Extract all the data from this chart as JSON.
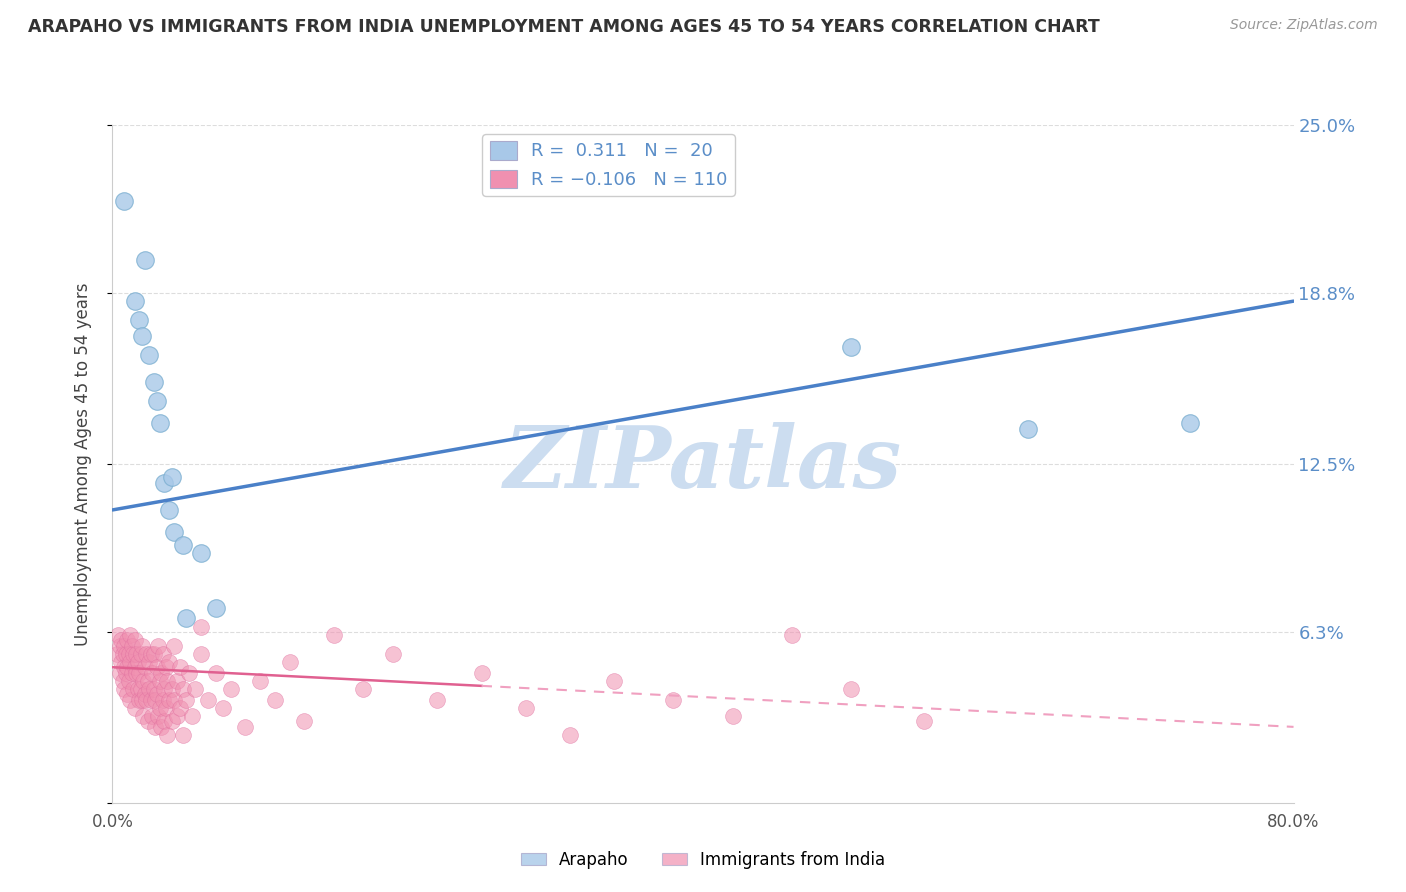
{
  "title": "ARAPAHO VS IMMIGRANTS FROM INDIA UNEMPLOYMENT AMONG AGES 45 TO 54 YEARS CORRELATION CHART",
  "source": "Source: ZipAtlas.com",
  "ylabel": "Unemployment Among Ages 45 to 54 years",
  "xlim": [
    0.0,
    0.8
  ],
  "ylim": [
    0.0,
    0.25
  ],
  "yticks": [
    0.0,
    0.063,
    0.125,
    0.188,
    0.25
  ],
  "ytick_labels": [
    "",
    "6.3%",
    "12.5%",
    "18.8%",
    "25.0%"
  ],
  "arapaho_color": "#a8c8e8",
  "arapaho_edge": "#7aaed0",
  "india_color": "#f090b0",
  "india_edge": "#e070a0",
  "trendline_arapaho_color": "#4a80c8",
  "trendline_india_solid_color": "#e06090",
  "trendline_india_dash_color": "#f0a0c0",
  "watermark_color": "#ccddf0",
  "grid_color": "#dddddd",
  "legend_r_color": "#5080c0",
  "legend_n_color": "#5080c0",
  "arapaho_trendline": [
    0.0,
    0.108,
    0.8,
    0.185
  ],
  "india_trendline_solid_end": 0.25,
  "india_trendline": [
    0.0,
    0.05,
    0.8,
    0.028
  ],
  "arapaho_points": [
    [
      0.008,
      0.222
    ],
    [
      0.015,
      0.185
    ],
    [
      0.018,
      0.178
    ],
    [
      0.02,
      0.172
    ],
    [
      0.022,
      0.2
    ],
    [
      0.025,
      0.165
    ],
    [
      0.028,
      0.155
    ],
    [
      0.03,
      0.148
    ],
    [
      0.032,
      0.14
    ],
    [
      0.035,
      0.118
    ],
    [
      0.038,
      0.108
    ],
    [
      0.04,
      0.12
    ],
    [
      0.042,
      0.1
    ],
    [
      0.048,
      0.095
    ],
    [
      0.05,
      0.068
    ],
    [
      0.06,
      0.092
    ],
    [
      0.07,
      0.072
    ],
    [
      0.5,
      0.168
    ],
    [
      0.62,
      0.138
    ],
    [
      0.73,
      0.14
    ]
  ],
  "india_points": [
    [
      0.003,
      0.055
    ],
    [
      0.004,
      0.062
    ],
    [
      0.005,
      0.048
    ],
    [
      0.005,
      0.058
    ],
    [
      0.006,
      0.052
    ],
    [
      0.006,
      0.06
    ],
    [
      0.007,
      0.045
    ],
    [
      0.007,
      0.055
    ],
    [
      0.008,
      0.05
    ],
    [
      0.008,
      0.058
    ],
    [
      0.008,
      0.042
    ],
    [
      0.009,
      0.055
    ],
    [
      0.009,
      0.048
    ],
    [
      0.01,
      0.06
    ],
    [
      0.01,
      0.05
    ],
    [
      0.01,
      0.04
    ],
    [
      0.011,
      0.055
    ],
    [
      0.011,
      0.045
    ],
    [
      0.012,
      0.052
    ],
    [
      0.012,
      0.062
    ],
    [
      0.012,
      0.038
    ],
    [
      0.013,
      0.058
    ],
    [
      0.013,
      0.048
    ],
    [
      0.014,
      0.055
    ],
    [
      0.014,
      0.042
    ],
    [
      0.015,
      0.06
    ],
    [
      0.015,
      0.05
    ],
    [
      0.015,
      0.035
    ],
    [
      0.016,
      0.048
    ],
    [
      0.016,
      0.055
    ],
    [
      0.017,
      0.042
    ],
    [
      0.017,
      0.052
    ],
    [
      0.018,
      0.038
    ],
    [
      0.018,
      0.048
    ],
    [
      0.019,
      0.055
    ],
    [
      0.019,
      0.042
    ],
    [
      0.02,
      0.038
    ],
    [
      0.02,
      0.058
    ],
    [
      0.021,
      0.045
    ],
    [
      0.021,
      0.032
    ],
    [
      0.022,
      0.05
    ],
    [
      0.022,
      0.04
    ],
    [
      0.023,
      0.055
    ],
    [
      0.023,
      0.038
    ],
    [
      0.024,
      0.045
    ],
    [
      0.024,
      0.03
    ],
    [
      0.025,
      0.052
    ],
    [
      0.025,
      0.042
    ],
    [
      0.026,
      0.055
    ],
    [
      0.026,
      0.038
    ],
    [
      0.027,
      0.048
    ],
    [
      0.027,
      0.032
    ],
    [
      0.028,
      0.042
    ],
    [
      0.028,
      0.055
    ],
    [
      0.029,
      0.038
    ],
    [
      0.029,
      0.028
    ],
    [
      0.03,
      0.05
    ],
    [
      0.03,
      0.04
    ],
    [
      0.031,
      0.032
    ],
    [
      0.031,
      0.058
    ],
    [
      0.032,
      0.045
    ],
    [
      0.032,
      0.035
    ],
    [
      0.033,
      0.048
    ],
    [
      0.033,
      0.028
    ],
    [
      0.034,
      0.038
    ],
    [
      0.034,
      0.055
    ],
    [
      0.035,
      0.042
    ],
    [
      0.035,
      0.03
    ],
    [
      0.036,
      0.05
    ],
    [
      0.036,
      0.035
    ],
    [
      0.037,
      0.045
    ],
    [
      0.037,
      0.025
    ],
    [
      0.038,
      0.038
    ],
    [
      0.038,
      0.052
    ],
    [
      0.04,
      0.042
    ],
    [
      0.04,
      0.03
    ],
    [
      0.042,
      0.058
    ],
    [
      0.042,
      0.038
    ],
    [
      0.044,
      0.045
    ],
    [
      0.044,
      0.032
    ],
    [
      0.046,
      0.05
    ],
    [
      0.046,
      0.035
    ],
    [
      0.048,
      0.042
    ],
    [
      0.048,
      0.025
    ],
    [
      0.05,
      0.038
    ],
    [
      0.052,
      0.048
    ],
    [
      0.054,
      0.032
    ],
    [
      0.056,
      0.042
    ],
    [
      0.06,
      0.055
    ],
    [
      0.06,
      0.065
    ],
    [
      0.065,
      0.038
    ],
    [
      0.07,
      0.048
    ],
    [
      0.075,
      0.035
    ],
    [
      0.08,
      0.042
    ],
    [
      0.09,
      0.028
    ],
    [
      0.1,
      0.045
    ],
    [
      0.11,
      0.038
    ],
    [
      0.12,
      0.052
    ],
    [
      0.13,
      0.03
    ],
    [
      0.15,
      0.062
    ],
    [
      0.17,
      0.042
    ],
    [
      0.19,
      0.055
    ],
    [
      0.22,
      0.038
    ],
    [
      0.25,
      0.048
    ],
    [
      0.28,
      0.035
    ],
    [
      0.31,
      0.025
    ],
    [
      0.34,
      0.045
    ],
    [
      0.38,
      0.038
    ],
    [
      0.42,
      0.032
    ],
    [
      0.46,
      0.062
    ],
    [
      0.5,
      0.042
    ],
    [
      0.55,
      0.03
    ]
  ]
}
